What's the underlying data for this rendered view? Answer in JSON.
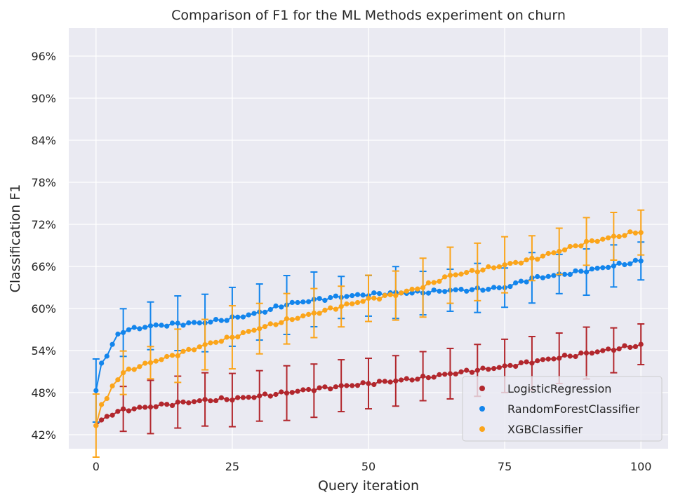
{
  "chart_data": {
    "type": "line",
    "title": "Comparison of F1 for the ML Methods experiment on churn",
    "xlabel": "Query iteration",
    "ylabel": "Classification F1",
    "xlim": [
      -5,
      105
    ],
    "ylim": [
      40.0,
      100.0
    ],
    "xticks": [
      0,
      25,
      50,
      75,
      100
    ],
    "xtick_labels": [
      "0",
      "25",
      "50",
      "75",
      "100"
    ],
    "yticks": [
      42,
      48,
      54,
      60,
      66,
      72,
      78,
      84,
      90,
      96
    ],
    "ytick_labels": [
      "42%",
      "48%",
      "54%",
      "60%",
      "66%",
      "72%",
      "78%",
      "84%",
      "90%",
      "96%"
    ],
    "grid": true,
    "legend": "lower right",
    "series": [
      {
        "name": "LogisticRegression",
        "color": "#b2272d",
        "anchors": [
          [
            0,
            43.3
          ],
          [
            1,
            44.1
          ],
          [
            3,
            45.0
          ],
          [
            5,
            45.5
          ],
          [
            10,
            46.0
          ],
          [
            15,
            46.5
          ],
          [
            20,
            46.9
          ],
          [
            25,
            47.1
          ],
          [
            30,
            47.5
          ],
          [
            35,
            48.0
          ],
          [
            40,
            48.5
          ],
          [
            45,
            48.9
          ],
          [
            50,
            49.3
          ],
          [
            55,
            49.7
          ],
          [
            60,
            50.1
          ],
          [
            65,
            50.7
          ],
          [
            70,
            51.2
          ],
          [
            75,
            51.7
          ],
          [
            80,
            52.4
          ],
          [
            85,
            53.0
          ],
          [
            90,
            53.6
          ],
          [
            95,
            54.2
          ],
          [
            100,
            54.8
          ]
        ],
        "error_x": [
          5,
          10,
          15,
          20,
          25,
          30,
          35,
          40,
          45,
          50,
          55,
          60,
          65,
          70,
          75,
          80,
          85,
          90,
          95,
          100
        ],
        "error_half": [
          3.2,
          3.8,
          3.7,
          3.8,
          3.8,
          3.6,
          3.9,
          3.8,
          3.7,
          3.6,
          3.6,
          3.5,
          3.6,
          3.7,
          3.8,
          3.8,
          3.6,
          3.7,
          3.2,
          2.9
        ]
      },
      {
        "name": "RandomForestClassifier",
        "color": "#1385ec",
        "anchors": [
          [
            0,
            48.3
          ],
          [
            1,
            52.2
          ],
          [
            2,
            53.3
          ],
          [
            3,
            54.8
          ],
          [
            4,
            56.2
          ],
          [
            5,
            56.8
          ],
          [
            7,
            57.1
          ],
          [
            10,
            57.5
          ],
          [
            15,
            57.8
          ],
          [
            20,
            58.0
          ],
          [
            25,
            58.6
          ],
          [
            30,
            59.4
          ],
          [
            35,
            60.6
          ],
          [
            40,
            61.2
          ],
          [
            45,
            61.7
          ],
          [
            50,
            62.0
          ],
          [
            55,
            62.2
          ],
          [
            60,
            62.3
          ],
          [
            65,
            62.6
          ],
          [
            70,
            62.7
          ],
          [
            75,
            63.0
          ],
          [
            80,
            64.3
          ],
          [
            85,
            64.8
          ],
          [
            90,
            65.4
          ],
          [
            95,
            66.1
          ],
          [
            100,
            66.8
          ]
        ],
        "error_x": [
          0,
          5,
          10,
          15,
          20,
          25,
          30,
          35,
          40,
          45,
          50,
          55,
          60,
          65,
          70,
          75,
          80,
          85,
          90,
          95,
          100
        ],
        "error_half": [
          4.5,
          3.4,
          3.4,
          3.9,
          4.1,
          4.2,
          4.0,
          4.2,
          3.9,
          3.0,
          2.9,
          3.7,
          3.1,
          3.0,
          3.5,
          2.8,
          3.6,
          2.8,
          3.3,
          3.0,
          2.7
        ]
      },
      {
        "name": "XGBClassifier",
        "color": "#fba51b",
        "anchors": [
          [
            0,
            43.3
          ],
          [
            1,
            46.3
          ],
          [
            2,
            47.1
          ],
          [
            3,
            48.9
          ],
          [
            4,
            50.0
          ],
          [
            5,
            50.8
          ],
          [
            7,
            51.5
          ],
          [
            10,
            52.3
          ],
          [
            15,
            53.5
          ],
          [
            20,
            54.8
          ],
          [
            25,
            55.9
          ],
          [
            30,
            57.2
          ],
          [
            35,
            58.3
          ],
          [
            40,
            59.3
          ],
          [
            45,
            60.3
          ],
          [
            50,
            61.3
          ],
          [
            55,
            62.0
          ],
          [
            60,
            63.1
          ],
          [
            65,
            64.7
          ],
          [
            70,
            65.4
          ],
          [
            75,
            66.2
          ],
          [
            80,
            67.0
          ],
          [
            85,
            68.2
          ],
          [
            90,
            69.4
          ],
          [
            95,
            70.2
          ],
          [
            100,
            71.0
          ]
        ],
        "error_x": [
          0,
          5,
          10,
          15,
          20,
          25,
          30,
          35,
          40,
          45,
          50,
          55,
          60,
          65,
          70,
          75,
          80,
          85,
          90,
          95,
          100
        ],
        "error_half": [
          4.5,
          3.1,
          2.3,
          3.8,
          3.6,
          4.5,
          3.6,
          3.6,
          3.5,
          2.9,
          3.3,
          3.5,
          4.2,
          4.0,
          4.1,
          4.0,
          3.2,
          3.3,
          3.4,
          3.4,
          3.2
        ]
      }
    ]
  }
}
